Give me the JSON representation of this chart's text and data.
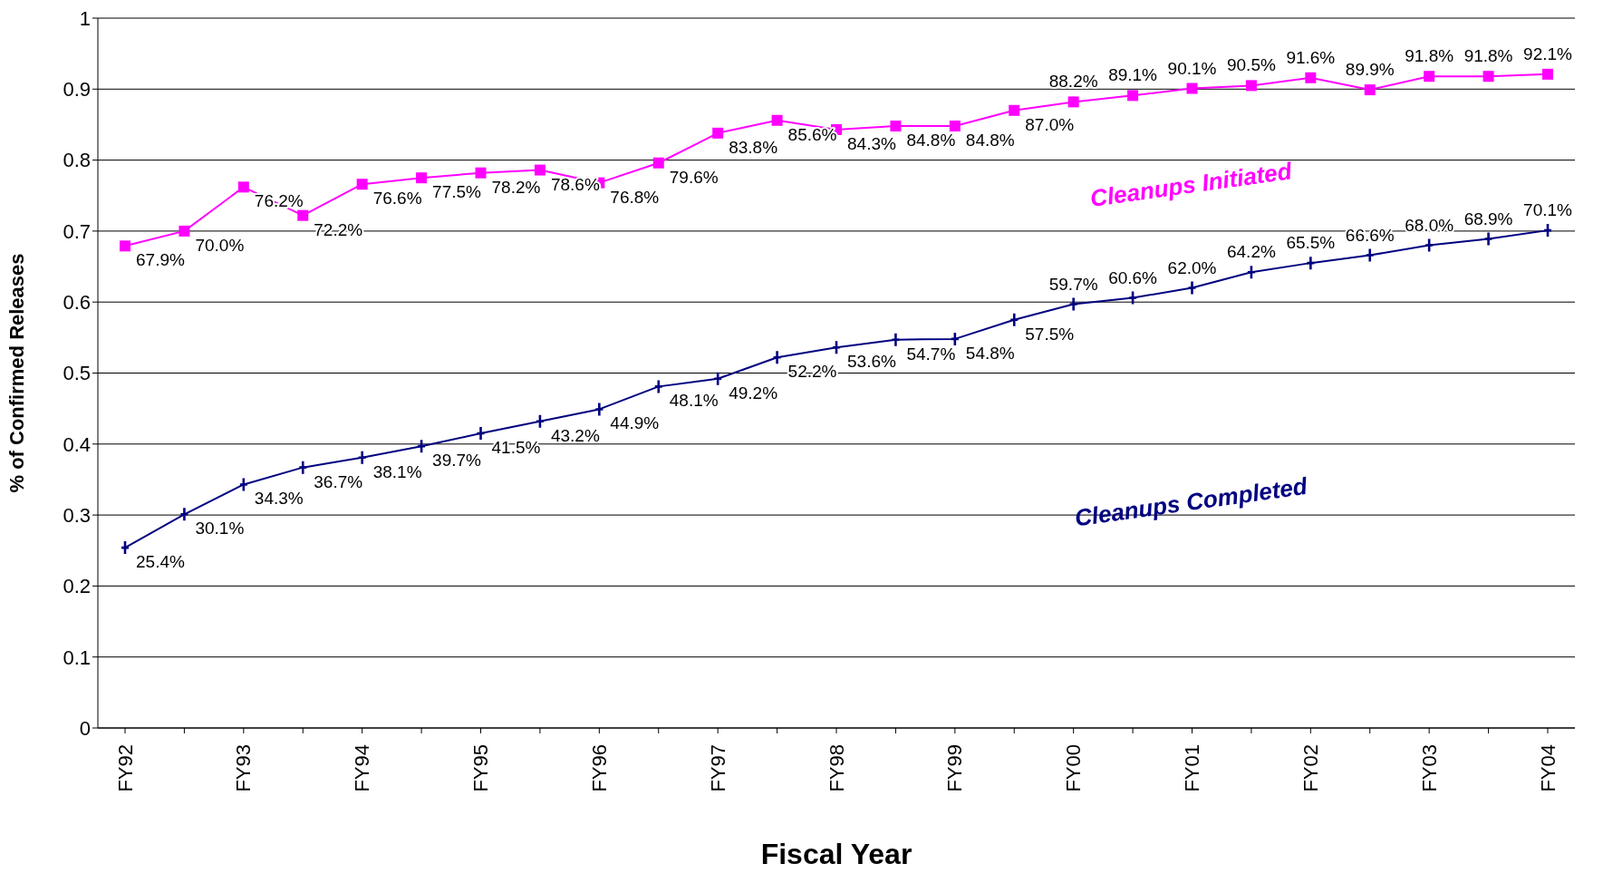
{
  "chart_data": {
    "type": "line",
    "xlabel": "Fiscal Year",
    "ylabel": "% of Confirmed Releases",
    "categories": [
      "FY92",
      null,
      "FY93",
      null,
      "FY94",
      null,
      "FY95",
      null,
      "FY96",
      null,
      "FY97",
      null,
      "FY98",
      null,
      "FY99",
      null,
      "FY00",
      null,
      "FY01",
      null,
      "FY02",
      null,
      "FY03",
      null,
      "FY04"
    ],
    "series": [
      {
        "name": "Cleanups Initiated",
        "color": "#ff00ff",
        "marker": "square",
        "values": [
          0.679,
          0.7,
          0.762,
          0.722,
          0.766,
          0.775,
          0.782,
          0.786,
          0.768,
          0.796,
          0.838,
          0.856,
          0.843,
          0.848,
          0.848,
          0.87,
          0.882,
          0.891,
          0.901,
          0.905,
          0.916,
          0.899,
          0.918,
          0.918,
          0.921
        ],
        "value_labels": [
          "67.9%",
          "70.0%",
          "76.2%",
          "72.2%",
          "76.6%",
          "77.5%",
          "78.2%",
          "78.6%",
          "76.8%",
          "79.6%",
          "83.8%",
          "85.6%",
          "84.3%",
          "84.8%",
          "84.8%",
          "87.0%",
          "88.2%",
          "89.1%",
          "90.1%",
          "90.5%",
          "91.6%",
          "89.9%",
          "91.8%",
          "91.8%",
          "92.1%"
        ]
      },
      {
        "name": "Cleanups Completed",
        "color": "#000080",
        "marker": "cross",
        "values": [
          0.254,
          0.301,
          0.343,
          0.367,
          0.381,
          0.397,
          0.415,
          0.432,
          0.449,
          0.481,
          0.492,
          0.522,
          0.536,
          0.547,
          0.548,
          0.575,
          0.597,
          0.606,
          0.62,
          0.642,
          0.655,
          0.666,
          0.68,
          0.689,
          0.701
        ],
        "value_labels": [
          "25.4%",
          "30.1%",
          "34.3%",
          "36.7%",
          "38.1%",
          "39.7%",
          "41.5%",
          "43.2%",
          "44.9%",
          "48.1%",
          "49.2%",
          "52.2%",
          "53.6%",
          "54.7%",
          "54.8%",
          "57.5%",
          "59.7%",
          "60.6%",
          "62.0%",
          "64.2%",
          "65.5%",
          "66.6%",
          "68.0%",
          "68.9%",
          "70.1%"
        ]
      }
    ],
    "ylim": [
      0,
      1
    ],
    "yticks": [
      0,
      0.1,
      0.2,
      0.3,
      0.4,
      0.5,
      0.6,
      0.7,
      0.8,
      0.9,
      1
    ],
    "grid": "y",
    "legend": false
  }
}
